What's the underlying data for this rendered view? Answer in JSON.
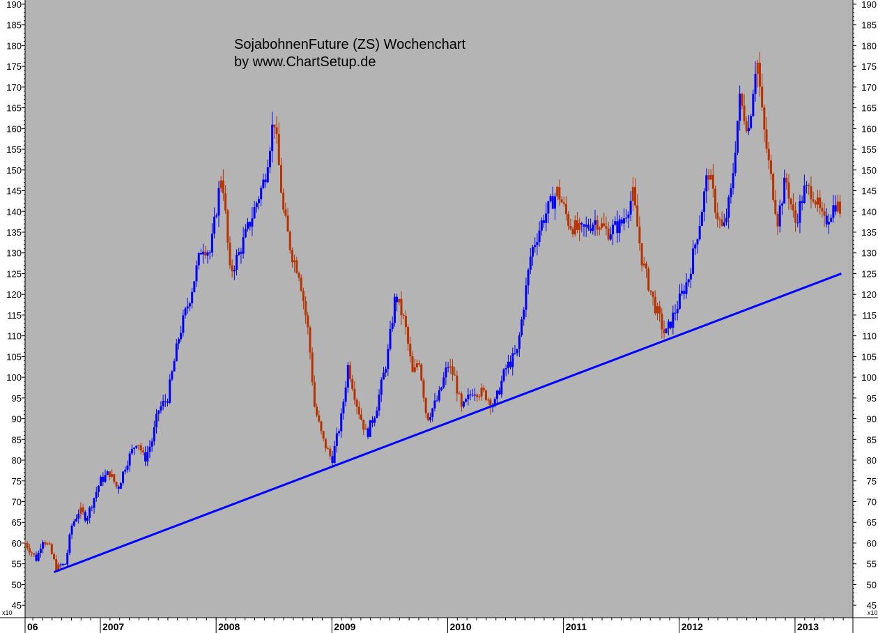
{
  "chart_data": {
    "type": "candlestick-bar",
    "title": "SojabohnenFuture (ZS) Wochenchart",
    "subtitle": "by www.ChartSetup.de",
    "y_unit_label": "x10",
    "ylim": [
      42,
      191
    ],
    "y_ticks": [
      45,
      50,
      55,
      60,
      65,
      70,
      75,
      80,
      85,
      90,
      95,
      100,
      105,
      110,
      115,
      120,
      125,
      130,
      135,
      140,
      145,
      150,
      155,
      160,
      165,
      170,
      175,
      180,
      185,
      190
    ],
    "x_year_labels": [
      "06",
      "2007",
      "2008",
      "2009",
      "2010",
      "2011",
      "2012",
      "2013"
    ],
    "xlim": [
      2006.35,
      2013.5
    ],
    "grid": false,
    "colors": {
      "up": "#0000ff",
      "down": "#b83200",
      "trendline": "#0000ff",
      "plot_background": "#b4b4b4"
    },
    "trendline": {
      "start": {
        "x": 2006.6,
        "y": 53
      },
      "end": {
        "x": 2013.4,
        "y": 125
      }
    },
    "price_path": [
      [
        2006.35,
        60
      ],
      [
        2006.45,
        56
      ],
      [
        2006.5,
        61
      ],
      [
        2006.56,
        59
      ],
      [
        2006.62,
        54
      ],
      [
        2006.7,
        55
      ],
      [
        2006.75,
        64
      ],
      [
        2006.82,
        68
      ],
      [
        2006.88,
        66
      ],
      [
        2007.0,
        75
      ],
      [
        2007.08,
        77
      ],
      [
        2007.15,
        73
      ],
      [
        2007.22,
        79
      ],
      [
        2007.32,
        85
      ],
      [
        2007.38,
        80
      ],
      [
        2007.45,
        85
      ],
      [
        2007.5,
        92
      ],
      [
        2007.58,
        95
      ],
      [
        2007.68,
        110
      ],
      [
        2007.78,
        120
      ],
      [
        2007.88,
        132
      ],
      [
        2007.95,
        130
      ],
      [
        2008.05,
        150
      ],
      [
        2008.12,
        125
      ],
      [
        2008.2,
        130
      ],
      [
        2008.3,
        138
      ],
      [
        2008.42,
        148
      ],
      [
        2008.5,
        163
      ],
      [
        2008.58,
        140
      ],
      [
        2008.65,
        130
      ],
      [
        2008.72,
        125
      ],
      [
        2008.8,
        110
      ],
      [
        2008.85,
        93
      ],
      [
        2008.92,
        85
      ],
      [
        2009.0,
        80
      ],
      [
        2009.08,
        90
      ],
      [
        2009.14,
        103
      ],
      [
        2009.22,
        93
      ],
      [
        2009.3,
        86
      ],
      [
        2009.38,
        92
      ],
      [
        2009.48,
        105
      ],
      [
        2009.55,
        120
      ],
      [
        2009.63,
        113
      ],
      [
        2009.7,
        100
      ],
      [
        2009.75,
        105
      ],
      [
        2009.82,
        90
      ],
      [
        2009.92,
        95
      ],
      [
        2010.0,
        103
      ],
      [
        2010.06,
        100
      ],
      [
        2010.12,
        92
      ],
      [
        2010.22,
        97
      ],
      [
        2010.32,
        96
      ],
      [
        2010.4,
        93
      ],
      [
        2010.5,
        102
      ],
      [
        2010.6,
        106
      ],
      [
        2010.72,
        130
      ],
      [
        2010.82,
        138
      ],
      [
        2010.95,
        145
      ],
      [
        2011.05,
        137
      ],
      [
        2011.15,
        135
      ],
      [
        2011.28,
        138
      ],
      [
        2011.38,
        135
      ],
      [
        2011.5,
        137
      ],
      [
        2011.6,
        144
      ],
      [
        2011.68,
        128
      ],
      [
        2011.78,
        118
      ],
      [
        2011.88,
        110
      ],
      [
        2011.98,
        117
      ],
      [
        2012.08,
        124
      ],
      [
        2012.18,
        138
      ],
      [
        2012.25,
        150
      ],
      [
        2012.32,
        140
      ],
      [
        2012.38,
        135
      ],
      [
        2012.45,
        145
      ],
      [
        2012.52,
        167
      ],
      [
        2012.6,
        160
      ],
      [
        2012.67,
        178
      ],
      [
        2012.72,
        162
      ],
      [
        2012.78,
        150
      ],
      [
        2012.85,
        138
      ],
      [
        2012.92,
        148
      ],
      [
        2013.0,
        137
      ],
      [
        2013.08,
        145
      ],
      [
        2013.15,
        145
      ],
      [
        2013.25,
        137
      ],
      [
        2013.35,
        142
      ],
      [
        2013.4,
        140
      ]
    ]
  }
}
